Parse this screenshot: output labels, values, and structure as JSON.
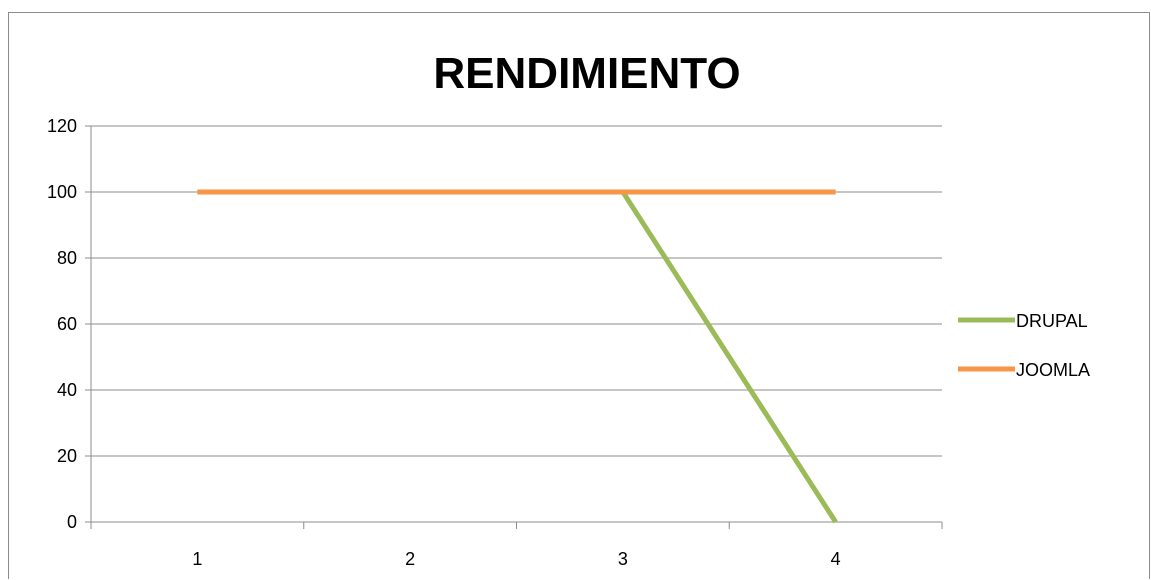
{
  "chart_data": {
    "type": "line",
    "title": "RENDIMIENTO",
    "categories": [
      "1",
      "2",
      "3",
      "4"
    ],
    "yticks": [
      0,
      20,
      40,
      60,
      80,
      100,
      120
    ],
    "ylim": [
      0,
      120
    ],
    "grid": true,
    "legend_position": "right",
    "series": [
      {
        "name": "DRUPAL",
        "values": [
          100,
          100,
          100,
          0
        ],
        "color": "#9BBB59"
      },
      {
        "name": "JOOMLA",
        "values": [
          100,
          100,
          100,
          100
        ],
        "color": "#F79646"
      }
    ]
  }
}
